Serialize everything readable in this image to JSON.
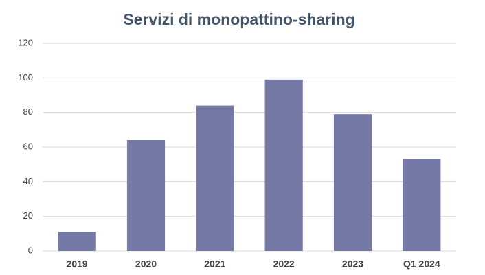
{
  "chart_data": {
    "type": "bar",
    "title": "Servizi di monopattino-sharing",
    "categories": [
      "2019",
      "2020",
      "2021",
      "2022",
      "2023",
      "Q1 2024"
    ],
    "values": [
      11,
      64,
      84,
      99,
      79,
      53
    ],
    "color": "#7579a6",
    "ylim": [
      0,
      120
    ],
    "yticks": [
      0,
      20,
      40,
      60,
      80,
      100,
      120
    ],
    "grid": true
  }
}
